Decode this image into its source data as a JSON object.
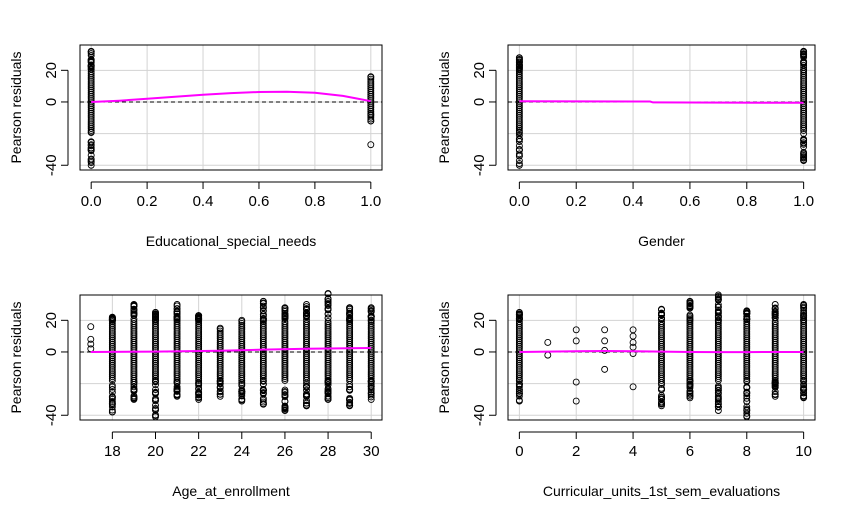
{
  "chart_data": [
    {
      "type": "scatter",
      "xlabel": "Educational_special_needs",
      "ylabel": "Pearson residuals",
      "xlim": [
        -0.04,
        1.04
      ],
      "ylim": [
        -43,
        36
      ],
      "xticks": [
        0.0,
        0.2,
        0.4,
        0.6,
        0.8,
        1.0
      ],
      "xtick_labels": [
        "0.0",
        "0.2",
        "0.4",
        "0.6",
        "0.8",
        "1.0"
      ],
      "yticks": [
        -40,
        0,
        20
      ],
      "ytick_labels": [
        "-40",
        "0",
        "20"
      ],
      "grid": true,
      "points": [
        {
          "x": 0,
          "y_min": -40,
          "y_max": 32
        },
        {
          "x": 1,
          "y_min": -12,
          "y_max": 16,
          "extra": [
            -12,
            -8,
            -27
          ]
        }
      ],
      "smooth_line": {
        "color": "#ff00ff",
        "x": [
          0.0,
          0.1,
          0.2,
          0.3,
          0.4,
          0.5,
          0.6,
          0.7,
          0.8,
          0.9,
          0.95,
          1.0
        ],
        "y": [
          0.0,
          0.8,
          2.0,
          3.3,
          4.6,
          5.6,
          6.3,
          6.5,
          5.8,
          3.8,
          2.2,
          0.5
        ]
      },
      "reference_line": {
        "y": 0,
        "style": "dashed"
      }
    },
    {
      "type": "scatter",
      "xlabel": "Gender",
      "ylabel": "Pearson residuals",
      "xlim": [
        -0.04,
        1.04
      ],
      "ylim": [
        -43,
        36
      ],
      "xticks": [
        0.0,
        0.2,
        0.4,
        0.6,
        0.8,
        1.0
      ],
      "xtick_labels": [
        "0.0",
        "0.2",
        "0.4",
        "0.6",
        "0.8",
        "1.0"
      ],
      "yticks": [
        -40,
        0,
        20
      ],
      "ytick_labels": [
        "-40",
        "0",
        "20"
      ],
      "grid": true,
      "points": [
        {
          "x": 0,
          "y_min": -40,
          "y_max": 28
        },
        {
          "x": 1,
          "y_min": -37,
          "y_max": 32
        }
      ],
      "smooth_line": {
        "color": "#ff00ff",
        "x": [
          0.0,
          0.46,
          0.47,
          1.0
        ],
        "y": [
          0.5,
          0.3,
          -0.3,
          -0.5
        ]
      },
      "reference_line": {
        "y": 0,
        "style": "dashed"
      }
    },
    {
      "type": "scatter",
      "xlabel": "Age_at_enrollment",
      "ylabel": "Pearson residuals",
      "xlim": [
        16.5,
        30.5
      ],
      "ylim": [
        -43,
        36
      ],
      "xticks": [
        18,
        20,
        22,
        24,
        26,
        28,
        30
      ],
      "xtick_labels": [
        "18",
        "20",
        "22",
        "24",
        "26",
        "28",
        "30"
      ],
      "yticks": [
        -40,
        0,
        20
      ],
      "ytick_labels": [
        "-40",
        "0",
        "20"
      ],
      "grid": true,
      "points": [
        {
          "x": 17,
          "y_min": 2,
          "y_max": 16,
          "sparse": [
            2,
            5,
            8,
            16
          ]
        },
        {
          "x": 18,
          "y_min": -38,
          "y_max": 22
        },
        {
          "x": 19,
          "y_min": -30,
          "y_max": 30
        },
        {
          "x": 20,
          "y_min": -41,
          "y_max": 25
        },
        {
          "x": 21,
          "y_min": -28,
          "y_max": 30
        },
        {
          "x": 22,
          "y_min": -30,
          "y_max": 23
        },
        {
          "x": 23,
          "y_min": -28,
          "y_max": 15
        },
        {
          "x": 24,
          "y_min": -31,
          "y_max": 20
        },
        {
          "x": 25,
          "y_min": -33,
          "y_max": 32
        },
        {
          "x": 26,
          "y_min": -37,
          "y_max": 28
        },
        {
          "x": 27,
          "y_min": -34,
          "y_max": 30
        },
        {
          "x": 28,
          "y_min": -30,
          "y_max": 37
        },
        {
          "x": 29,
          "y_min": -34,
          "y_max": 28
        },
        {
          "x": 30,
          "y_min": -30,
          "y_max": 28
        }
      ],
      "smooth_line": {
        "color": "#ff00ff",
        "x": [
          17,
          20,
          23,
          25,
          27,
          30
        ],
        "y": [
          0.0,
          0.2,
          0.8,
          1.5,
          2.0,
          2.5
        ]
      },
      "reference_line": {
        "y": 0,
        "style": "dashed"
      }
    },
    {
      "type": "scatter",
      "xlabel": "Curricular_units_1st_sem_evaluations",
      "ylabel": "Pearson residuals",
      "xlim": [
        -0.4,
        10.4
      ],
      "ylim": [
        -43,
        36
      ],
      "xticks": [
        0,
        2,
        4,
        6,
        8,
        10
      ],
      "xtick_labels": [
        "0",
        "2",
        "4",
        "6",
        "8",
        "10"
      ],
      "yticks": [
        -40,
        0,
        20
      ],
      "ytick_labels": [
        "-40",
        "0",
        "20"
      ],
      "grid": true,
      "points": [
        {
          "x": 0,
          "y_min": -31,
          "y_max": 25
        },
        {
          "x": 1,
          "y_min": -2,
          "y_max": 6,
          "sparse": [
            -2,
            6
          ]
        },
        {
          "x": 2,
          "y_min": -31,
          "y_max": 14,
          "sparse": [
            -31,
            -19,
            7,
            14
          ]
        },
        {
          "x": 3,
          "y_min": -11,
          "y_max": 14,
          "sparse": [
            -11,
            1,
            7,
            14
          ]
        },
        {
          "x": 4,
          "y_min": -22,
          "y_max": 14,
          "sparse": [
            -22,
            -1,
            3,
            6,
            10,
            14
          ]
        },
        {
          "x": 5,
          "y_min": -34,
          "y_max": 27
        },
        {
          "x": 6,
          "y_min": -29,
          "y_max": 32
        },
        {
          "x": 7,
          "y_min": -37,
          "y_max": 36
        },
        {
          "x": 8,
          "y_min": -41,
          "y_max": 26
        },
        {
          "x": 9,
          "y_min": -28,
          "y_max": 30
        },
        {
          "x": 10,
          "y_min": -29,
          "y_max": 30
        }
      ],
      "smooth_line": {
        "color": "#ff00ff",
        "x": [
          0,
          1,
          2,
          3,
          4,
          5,
          6,
          7,
          8,
          9,
          10
        ],
        "y": [
          0.0,
          0.2,
          0.5,
          0.6,
          0.5,
          0.2,
          0.0,
          -0.1,
          -0.1,
          0.0,
          0.0
        ]
      },
      "reference_line": {
        "y": 0,
        "style": "dashed"
      }
    }
  ]
}
